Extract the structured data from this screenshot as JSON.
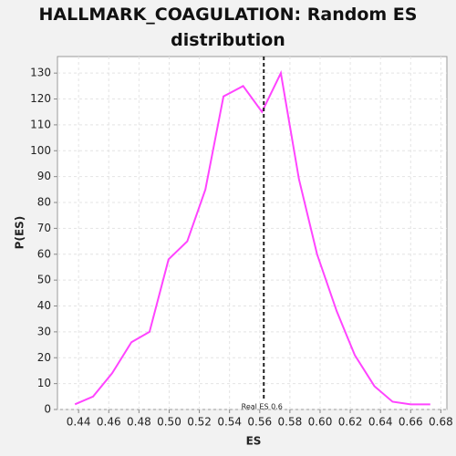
{
  "chart_data": {
    "type": "line",
    "title": "HALLMARK_COAGULATION: Random ES distribution",
    "x_label": "ES",
    "y_label": "P(ES)",
    "x": [
      0.4376,
      0.4496,
      0.4622,
      0.475,
      0.487,
      0.4996,
      0.512,
      0.524,
      0.536,
      0.549,
      0.5615,
      0.574,
      0.586,
      0.598,
      0.611,
      0.623,
      0.636,
      0.648,
      0.66,
      0.673
    ],
    "series": [
      {
        "name": "P(ES)",
        "color": "#ff44ff",
        "values": [
          2,
          5,
          14,
          26,
          30,
          58,
          65,
          85,
          121,
          125,
          115,
          130,
          89,
          60,
          38,
          21,
          9,
          3,
          2,
          2
        ]
      }
    ],
    "xlim": [
      0.426,
      0.684
    ],
    "xticks": [
      0.44,
      0.46,
      0.48,
      {
        "value": 0.5,
        "label": "0.50"
      },
      0.52,
      0.54,
      0.56,
      0.58,
      {
        "value": 0.6,
        "label": "0.60"
      },
      0.62,
      0.64,
      0.66,
      0.68
    ],
    "ylim": [
      0,
      136.4
    ],
    "yticks": [
      0,
      10,
      20,
      30,
      40,
      50,
      60,
      70,
      80,
      90,
      100,
      110,
      120,
      130
    ],
    "grid": true,
    "annotation": {
      "text": "Real ES 0.6",
      "x": 0.5627
    }
  }
}
